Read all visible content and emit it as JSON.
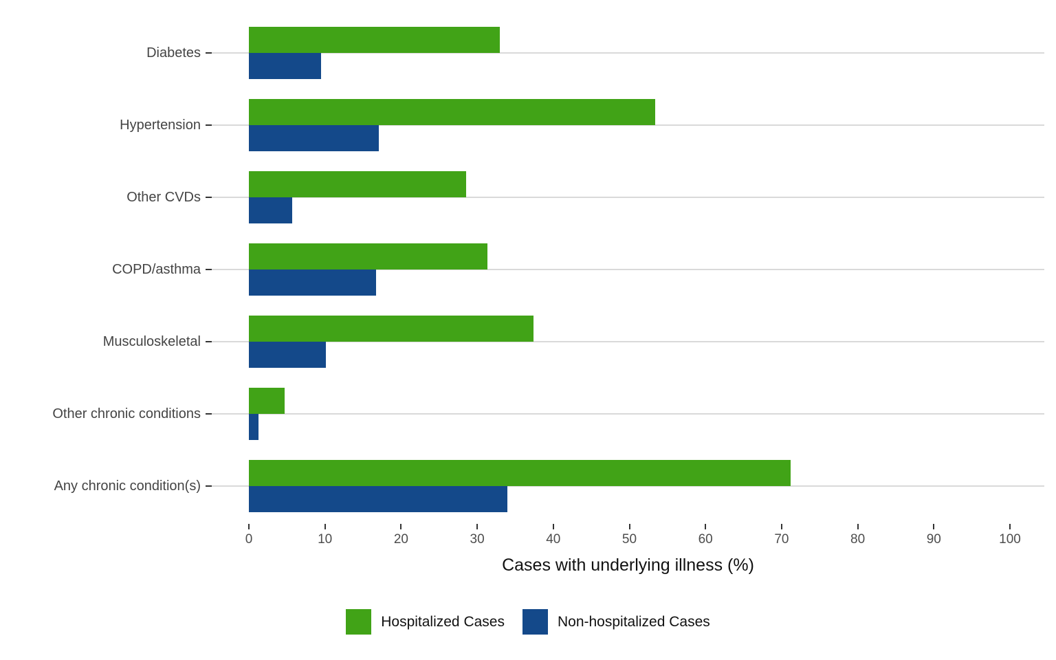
{
  "chart_data": {
    "type": "bar",
    "orientation": "horizontal",
    "title": "",
    "xlabel": "Cases with underlying illness (%)",
    "ylabel": "",
    "xlim": [
      0,
      100
    ],
    "x_ticks": [
      0,
      10,
      20,
      30,
      40,
      50,
      60,
      70,
      80,
      90,
      100
    ],
    "grid": "horizontal light-gray category lines",
    "legend_position": "bottom",
    "background": "#ffffff",
    "gridline_color": "#d9d9d9",
    "categories": [
      "Diabetes",
      "Hypertension",
      "Other CVDs",
      "COPD/asthma",
      "Musculoskeletal",
      "Other chronic conditions",
      "Any chronic condition(s)"
    ],
    "series": [
      {
        "name": "Hospitalized Cases",
        "color": "#41a317",
        "values": [
          33.0,
          53.4,
          28.5,
          31.3,
          37.4,
          4.7,
          71.2
        ]
      },
      {
        "name": "Non-hospitalized Cases",
        "color": "#14498a",
        "values": [
          9.5,
          17.1,
          5.7,
          16.7,
          10.1,
          1.3,
          34.0
        ]
      }
    ]
  }
}
